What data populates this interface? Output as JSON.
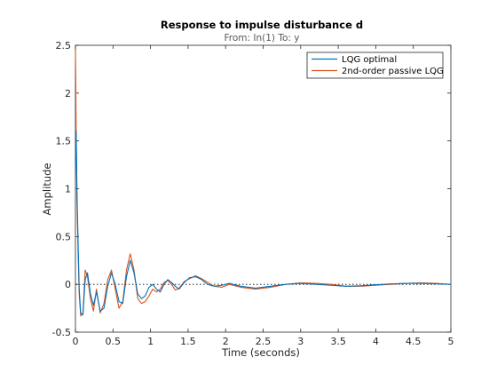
{
  "chart_data": {
    "type": "line",
    "title": "Response to impulse disturbance d",
    "subtitle": "From: In(1)  To: y",
    "xlabel": "Time (seconds)",
    "ylabel": "Amplitude",
    "xlim": [
      0,
      5
    ],
    "ylim": [
      -0.5,
      2.5
    ],
    "xticks": [
      0,
      0.5,
      1,
      1.5,
      2,
      2.5,
      3,
      3.5,
      4,
      4.5,
      5
    ],
    "yticks": [
      -0.5,
      0,
      0.5,
      1,
      1.5,
      2,
      2.5
    ],
    "xtick_labels": [
      "0",
      "0.5",
      "1",
      "1.5",
      "2",
      "2.5",
      "3",
      "3.5",
      "4",
      "4.5",
      "5"
    ],
    "ytick_labels": [
      "-0.5",
      "0",
      "0.5",
      "1",
      "1.5",
      "2",
      "2.5"
    ],
    "legend_position": "top-right",
    "zero_reference_line": true,
    "grid": false,
    "series": [
      {
        "name": "LQG optimal",
        "color": "#0072BD",
        "x": [
          0,
          0.01,
          0.02,
          0.035,
          0.05,
          0.07,
          0.1,
          0.13,
          0.16,
          0.2,
          0.24,
          0.28,
          0.33,
          0.38,
          0.43,
          0.48,
          0.53,
          0.58,
          0.63,
          0.68,
          0.73,
          0.78,
          0.83,
          0.88,
          0.93,
          0.98,
          1.03,
          1.08,
          1.13,
          1.18,
          1.23,
          1.28,
          1.33,
          1.38,
          1.45,
          1.52,
          1.6,
          1.68,
          1.76,
          1.85,
          1.95,
          2.05,
          2.2,
          2.4,
          2.6,
          2.8,
          3.0,
          3.2,
          3.4,
          3.6,
          3.8,
          4.0,
          4.2,
          4.4,
          4.6,
          4.8,
          5.0
        ],
        "y": [
          1.2,
          1.6,
          1.0,
          0.45,
          -0.05,
          -0.3,
          -0.32,
          0.05,
          0.12,
          -0.1,
          -0.22,
          -0.08,
          -0.28,
          -0.25,
          -0.02,
          0.12,
          0.0,
          -0.18,
          -0.2,
          0.08,
          0.25,
          0.12,
          -0.1,
          -0.15,
          -0.12,
          -0.03,
          0.0,
          -0.05,
          -0.08,
          0.0,
          0.05,
          0.02,
          -0.02,
          -0.05,
          0.02,
          0.07,
          0.08,
          0.05,
          0.0,
          -0.02,
          -0.01,
          0.01,
          -0.02,
          -0.04,
          -0.02,
          0.0,
          0.01,
          0.0,
          -0.01,
          -0.02,
          -0.015,
          -0.005,
          0.005,
          0.01,
          0.01,
          0.005,
          0.0
        ]
      },
      {
        "name": "2nd-order passive LQG",
        "color": "#D95319",
        "x": [
          0,
          0.005,
          0.01,
          0.02,
          0.035,
          0.05,
          0.07,
          0.1,
          0.13,
          0.16,
          0.2,
          0.24,
          0.28,
          0.33,
          0.38,
          0.43,
          0.48,
          0.53,
          0.58,
          0.63,
          0.68,
          0.73,
          0.78,
          0.83,
          0.88,
          0.93,
          0.98,
          1.03,
          1.08,
          1.13,
          1.18,
          1.23,
          1.28,
          1.33,
          1.38,
          1.45,
          1.52,
          1.6,
          1.68,
          1.76,
          1.85,
          1.95,
          2.05,
          2.2,
          2.4,
          2.6,
          2.8,
          3.0,
          3.2,
          3.4,
          3.6,
          3.8,
          4.0,
          4.2,
          4.4,
          4.6,
          4.8,
          5.0
        ],
        "y": [
          2.45,
          2.1,
          1.5,
          0.9,
          0.35,
          -0.1,
          -0.33,
          -0.3,
          0.15,
          0.08,
          -0.15,
          -0.28,
          -0.05,
          -0.3,
          -0.2,
          0.05,
          0.15,
          -0.05,
          -0.25,
          -0.18,
          0.15,
          0.32,
          0.15,
          -0.15,
          -0.2,
          -0.18,
          -0.12,
          -0.05,
          -0.08,
          -0.05,
          0.02,
          0.04,
          0.0,
          -0.06,
          -0.04,
          0.03,
          0.06,
          0.09,
          0.06,
          0.02,
          -0.02,
          -0.03,
          0.0,
          -0.03,
          -0.05,
          -0.03,
          0.0,
          0.015,
          0.01,
          0.0,
          -0.02,
          -0.02,
          -0.01,
          0.0,
          0.01,
          0.015,
          0.01,
          0.0
        ]
      }
    ]
  }
}
